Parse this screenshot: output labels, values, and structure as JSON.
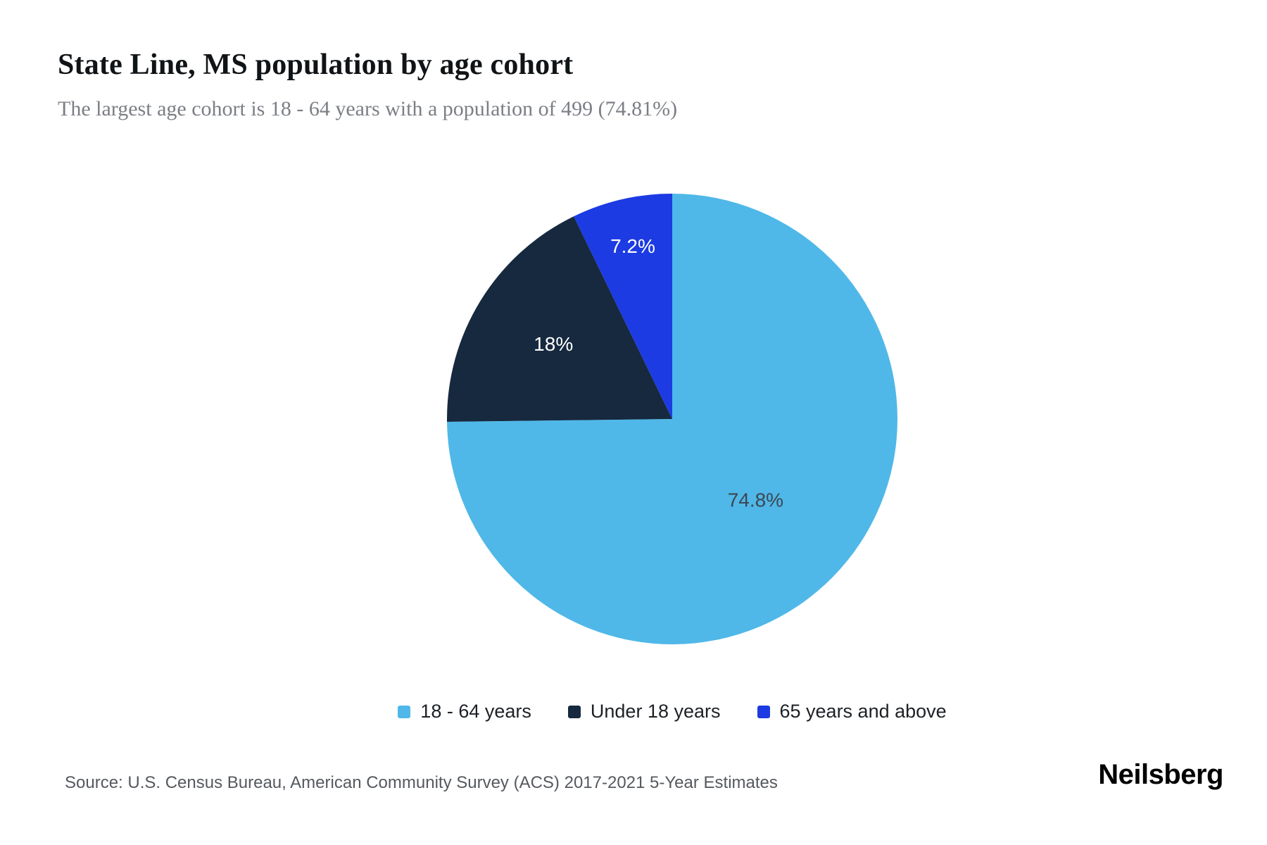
{
  "header": {
    "title": "State Line, MS population by age cohort",
    "subtitle": "The largest age cohort is 18 - 64 years with a population of 499 (74.81%)"
  },
  "chart_data": {
    "type": "pie",
    "title": "State Line, MS population by age cohort",
    "subtitle": "The largest age cohort is 18 - 64 years with a population of 499 (74.81%)",
    "largest_cohort": {
      "label": "18 - 64 years",
      "population": 499,
      "percent": 74.81
    },
    "start_angle_deg": 0,
    "direction": "clockwise",
    "legend_position": "bottom",
    "slices": [
      {
        "label": "18 - 64 years",
        "value": 74.8,
        "display": "74.8%",
        "color": "#4FB8E8",
        "text_color": "#3d4653",
        "label_r": 0.52
      },
      {
        "label": "Under 18 years",
        "value": 18.0,
        "display": "18%",
        "color": "#16293F",
        "text_color": "#ffffff",
        "label_r": 0.62
      },
      {
        "label": "65 years and above",
        "value": 7.2,
        "display": "7.2%",
        "color": "#1C3BE3",
        "text_color": "#ffffff",
        "label_r": 0.78
      }
    ]
  },
  "footer": {
    "source": "Source: U.S. Census Bureau, American Community Survey (ACS) 2017-2021 5-Year Estimates",
    "brand": "Neilsberg"
  }
}
